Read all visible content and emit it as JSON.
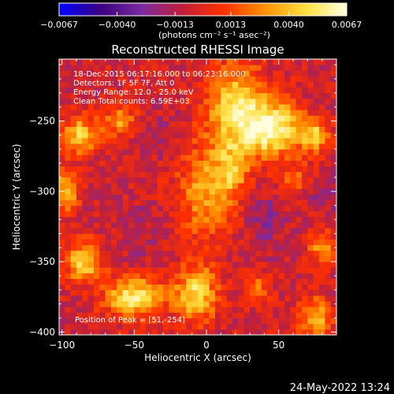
{
  "chart_data": {
    "type": "heatmap",
    "title": "Reconstructed RHESSI Image",
    "xlabel": "Heliocentric X (arcsec)",
    "ylabel": "Heliocentric Y (arcsec)",
    "xlim": [
      -102,
      90
    ],
    "ylim": [
      -402,
      -206
    ],
    "x_ticks": [
      -100,
      -50,
      0,
      50
    ],
    "x_tick_labels": [
      "−100",
      "−50",
      "0",
      "50"
    ],
    "y_ticks": [
      -250,
      -300,
      -350,
      -400
    ],
    "y_tick_labels": [
      "−250",
      "−300",
      "−350",
      "−400"
    ],
    "colorbar": {
      "min": -0.0067,
      "max": 0.0067,
      "ticks": [
        -0.0067,
        -0.004,
        -0.0013,
        0.0013,
        0.004,
        0.0067
      ],
      "tick_labels": [
        "−0.0067",
        "−0.0040",
        "−0.0013",
        "0.0013",
        "0.0040",
        "0.0067"
      ],
      "unit_label": "(photons cm⁻² s⁻¹ asec⁻²)",
      "colormap": [
        "#0000ff",
        "#3a0080",
        "#7a2aa0",
        "#c0203a",
        "#ff3000",
        "#ff9000",
        "#ffe040",
        "#ffffe0"
      ]
    },
    "annotations": [
      "18-Dec-2015 06:17:16.000 to 06:23:16.000",
      "Detectors: 1F 5F 7F, Att 0",
      "Energy Range: 12.0 - 25.0 keV",
      "Clean    Total counts: 6.59E+03"
    ],
    "peak_label": "Position of Peak = [51,-254]",
    "peak": {
      "x": 51,
      "y": -254
    },
    "sources": [
      {
        "x": 45,
        "y": -255,
        "sx": 14,
        "sy": 14,
        "amp": 0.0067
      },
      {
        "x": 20,
        "y": -240,
        "sx": 14,
        "sy": 22,
        "amp": 0.0052
      },
      {
        "x": 0,
        "y": -300,
        "sx": 14,
        "sy": 24,
        "amp": 0.0038
      },
      {
        "x": 18,
        "y": -285,
        "sx": 8,
        "sy": 14,
        "amp": 0.003
      },
      {
        "x": -50,
        "y": -375,
        "sx": 14,
        "sy": 10,
        "amp": 0.006
      },
      {
        "x": -7,
        "y": -372,
        "sx": 10,
        "sy": 14,
        "amp": 0.0055
      },
      {
        "x": -88,
        "y": -260,
        "sx": 9,
        "sy": 9,
        "amp": 0.005
      },
      {
        "x": -60,
        "y": -250,
        "sx": 8,
        "sy": 8,
        "amp": 0.0035
      },
      {
        "x": -85,
        "y": -350,
        "sx": 9,
        "sy": 10,
        "amp": 0.005
      },
      {
        "x": -97,
        "y": -300,
        "sx": 6,
        "sy": 10,
        "amp": 0.0045
      },
      {
        "x": 75,
        "y": -260,
        "sx": 7,
        "sy": 9,
        "amp": 0.0045
      },
      {
        "x": 80,
        "y": -340,
        "sx": 6,
        "sy": 8,
        "amp": 0.004
      },
      {
        "x": 75,
        "y": -390,
        "sx": 8,
        "sy": 10,
        "amp": 0.0045
      },
      {
        "x": 35,
        "y": -370,
        "sx": 6,
        "sy": 7,
        "amp": 0.003
      },
      {
        "x": 60,
        "y": -290,
        "sx": 8,
        "sy": 8,
        "amp": 0.002
      },
      {
        "x": -45,
        "y": -330,
        "sx": 10,
        "sy": 14,
        "amp": -0.001
      },
      {
        "x": 40,
        "y": -320,
        "sx": 10,
        "sy": 14,
        "amp": -0.0015
      },
      {
        "x": -30,
        "y": -260,
        "sx": 10,
        "sy": 10,
        "amp": -0.001
      },
      {
        "x": 85,
        "y": -300,
        "sx": 8,
        "sy": 10,
        "amp": -0.0012
      }
    ],
    "grid": false,
    "legend": "colorbar-top"
  },
  "footer_timestamp": "24-May-2022 13:24"
}
